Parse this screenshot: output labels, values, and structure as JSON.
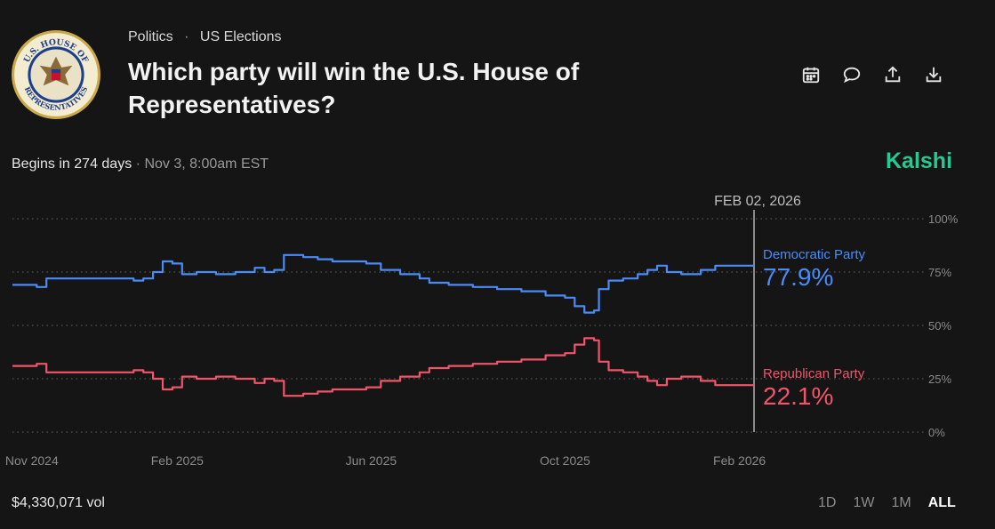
{
  "header": {
    "breadcrumb": [
      "Politics",
      "US Elections"
    ],
    "title": "Which party will win the U.S. House of Representatives?",
    "seal_text_top": "U.S. HOUSE OF",
    "seal_text_bottom": "REPRESENTATIVES",
    "actions": [
      {
        "name": "calendar-icon"
      },
      {
        "name": "comment-icon"
      },
      {
        "name": "share-icon"
      },
      {
        "name": "download-icon"
      }
    ]
  },
  "status": {
    "begins": "Begins in 274 days",
    "separator": "·",
    "datetime": "Nov 3, 8:00am EST"
  },
  "brand": "Kalshi",
  "footer": {
    "volume": "$4,330,071 vol",
    "ranges": [
      "1D",
      "1W",
      "1M",
      "ALL"
    ],
    "active_range": "ALL"
  },
  "colors": {
    "democratic": "#4a8cf7",
    "republican": "#f2546a",
    "grid": "#555555",
    "brand": "#27c892"
  },
  "chart_data": {
    "type": "line",
    "title": "Which party will win the U.S. House of Representatives?",
    "hover_date": "FEB 02, 2026",
    "ylim": [
      0,
      100
    ],
    "y_ticks": [
      "100%",
      "75%",
      "50%",
      "25%",
      "0%"
    ],
    "y_tick_values": [
      100,
      75,
      50,
      25,
      0
    ],
    "x_range": [
      0,
      15.3
    ],
    "x_ticks": [
      {
        "label": "Nov 2024",
        "value": 0.4
      },
      {
        "label": "Feb 2025",
        "value": 3.4
      },
      {
        "label": "Jun 2025",
        "value": 7.4
      },
      {
        "label": "Oct 2025",
        "value": 11.4
      },
      {
        "label": "Feb 2026",
        "value": 15.0
      }
    ],
    "series": [
      {
        "name": "Democratic Party",
        "current_label": "77.9%",
        "points": [
          [
            0,
            69
          ],
          [
            0.5,
            68
          ],
          [
            0.7,
            72
          ],
          [
            1.5,
            72
          ],
          [
            2.3,
            72
          ],
          [
            2.5,
            71
          ],
          [
            2.7,
            72
          ],
          [
            2.9,
            75
          ],
          [
            3.1,
            80
          ],
          [
            3.3,
            79
          ],
          [
            3.5,
            74
          ],
          [
            3.8,
            75
          ],
          [
            4.2,
            74
          ],
          [
            4.6,
            75
          ],
          [
            5.0,
            77
          ],
          [
            5.2,
            75
          ],
          [
            5.4,
            76
          ],
          [
            5.6,
            83
          ],
          [
            5.8,
            83
          ],
          [
            6.0,
            82
          ],
          [
            6.3,
            81
          ],
          [
            6.6,
            80
          ],
          [
            7.0,
            80
          ],
          [
            7.3,
            79
          ],
          [
            7.6,
            76
          ],
          [
            8.0,
            74
          ],
          [
            8.4,
            72
          ],
          [
            8.6,
            70
          ],
          [
            9.0,
            69
          ],
          [
            9.5,
            68
          ],
          [
            10.0,
            67
          ],
          [
            10.5,
            66
          ],
          [
            11.0,
            64
          ],
          [
            11.4,
            63
          ],
          [
            11.6,
            59
          ],
          [
            11.8,
            56
          ],
          [
            12.0,
            57
          ],
          [
            12.1,
            67
          ],
          [
            12.3,
            71
          ],
          [
            12.6,
            72
          ],
          [
            12.9,
            74
          ],
          [
            13.1,
            76
          ],
          [
            13.3,
            78
          ],
          [
            13.5,
            75
          ],
          [
            13.8,
            74
          ],
          [
            14.2,
            76
          ],
          [
            14.5,
            78
          ],
          [
            15.0,
            78
          ],
          [
            15.3,
            77.9
          ]
        ]
      },
      {
        "name": "Republican Party",
        "current_label": "22.1%",
        "points": [
          [
            0,
            31
          ],
          [
            0.5,
            32
          ],
          [
            0.7,
            28
          ],
          [
            1.5,
            28
          ],
          [
            2.3,
            28
          ],
          [
            2.5,
            29
          ],
          [
            2.7,
            28
          ],
          [
            2.9,
            25
          ],
          [
            3.1,
            20
          ],
          [
            3.3,
            21
          ],
          [
            3.5,
            26
          ],
          [
            3.8,
            25
          ],
          [
            4.2,
            26
          ],
          [
            4.6,
            25
          ],
          [
            5.0,
            23
          ],
          [
            5.2,
            25
          ],
          [
            5.4,
            24
          ],
          [
            5.6,
            17
          ],
          [
            5.8,
            17
          ],
          [
            6.0,
            18
          ],
          [
            6.3,
            19
          ],
          [
            6.6,
            20
          ],
          [
            7.0,
            20
          ],
          [
            7.3,
            21
          ],
          [
            7.6,
            24
          ],
          [
            8.0,
            26
          ],
          [
            8.4,
            28
          ],
          [
            8.6,
            30
          ],
          [
            9.0,
            31
          ],
          [
            9.5,
            32
          ],
          [
            10.0,
            33
          ],
          [
            10.5,
            34
          ],
          [
            11.0,
            36
          ],
          [
            11.4,
            37
          ],
          [
            11.6,
            41
          ],
          [
            11.8,
            44
          ],
          [
            12.0,
            43
          ],
          [
            12.1,
            33
          ],
          [
            12.3,
            29
          ],
          [
            12.6,
            28
          ],
          [
            12.9,
            26
          ],
          [
            13.1,
            24
          ],
          [
            13.3,
            22
          ],
          [
            13.5,
            25
          ],
          [
            13.8,
            26
          ],
          [
            14.2,
            24
          ],
          [
            14.5,
            22
          ],
          [
            15.0,
            22
          ],
          [
            15.3,
            22.1
          ]
        ]
      }
    ]
  }
}
